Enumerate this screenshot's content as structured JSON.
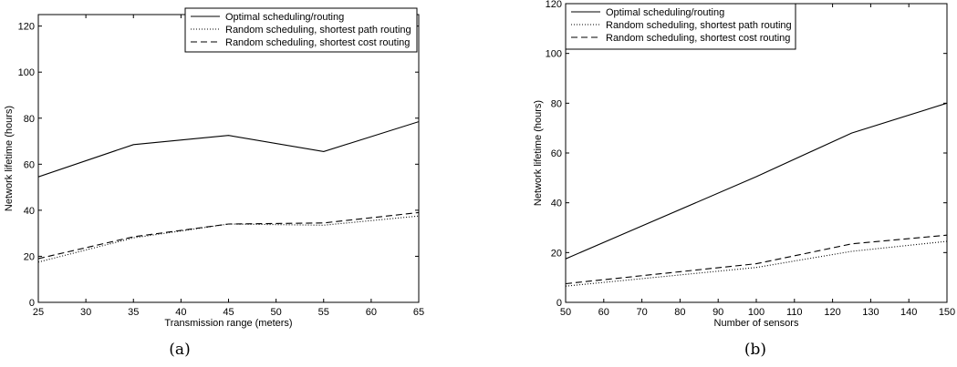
{
  "chart_data": [
    {
      "type": "line",
      "caption": "(a)",
      "xlabel": "Transmission range (meters)",
      "ylabel": "Network lifetime (hours)",
      "xlim": [
        25,
        65
      ],
      "ylim": [
        0,
        125
      ],
      "xticks": [
        25,
        30,
        35,
        40,
        45,
        50,
        55,
        60,
        65
      ],
      "yticks": [
        0,
        20,
        40,
        60,
        80,
        100,
        120
      ],
      "grid": false,
      "legend_position": "top-right",
      "x": [
        25,
        35,
        45,
        55,
        65
      ],
      "series": [
        {
          "name": "Optimal scheduling/routing",
          "style": "solid",
          "values": [
            54.5,
            68.5,
            72.5,
            65.5,
            78.5
          ]
        },
        {
          "name": "Random scheduling, shortest path routing",
          "style": "dotted",
          "values": [
            17.5,
            28,
            34,
            33.5,
            37.5
          ]
        },
        {
          "name": "Random scheduling, shortest cost routing",
          "style": "dashed",
          "values": [
            19,
            28.5,
            34,
            34.5,
            39
          ]
        }
      ]
    },
    {
      "type": "line",
      "caption": "(b)",
      "xlabel": "Number of sensors",
      "ylabel": "Network lifetime (hours)",
      "xlim": [
        50,
        150
      ],
      "ylim": [
        0,
        120
      ],
      "xticks": [
        50,
        60,
        70,
        80,
        90,
        100,
        110,
        120,
        130,
        140,
        150
      ],
      "yticks": [
        0,
        20,
        40,
        60,
        80,
        100,
        120
      ],
      "grid": false,
      "legend_position": "top-left",
      "x": [
        50,
        100,
        125,
        150
      ],
      "series": [
        {
          "name": "Optimal scheduling/routing",
          "style": "solid",
          "values": [
            17.5,
            50.5,
            68,
            80
          ]
        },
        {
          "name": "Random scheduling, shortest path routing",
          "style": "dotted",
          "values": [
            6.5,
            14,
            20.5,
            24.5
          ]
        },
        {
          "name": "Random scheduling, shortest cost routing",
          "style": "dashed",
          "values": [
            7.5,
            15.5,
            23.5,
            27
          ]
        }
      ]
    }
  ]
}
